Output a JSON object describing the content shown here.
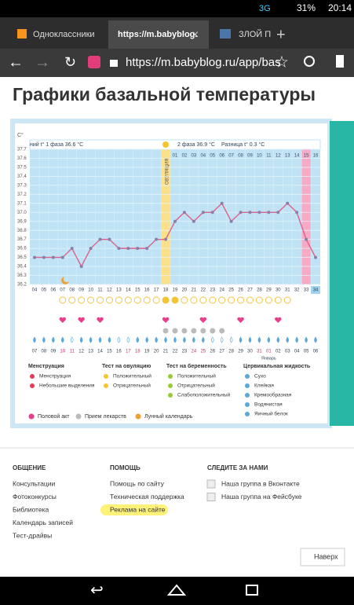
{
  "status": {
    "network": "3G",
    "battery": "31%",
    "time": "20:14"
  },
  "tabs": [
    "Одноклассники",
    "https://m.babyblog.",
    "ЗЛОЙ П"
  ],
  "url": "https://m.babyblog.ru/app/bas",
  "page_title": "Графики базальной температуры",
  "chart_data": {
    "type": "line",
    "y_unit": "C°",
    "phase1": "ний t° 1 фаза 36.6 °C",
    "phase2": "2 фаза 36.9 °C",
    "diff": "Разница t° 0.3 °C",
    "ovulation": "ОВУЛЯЦИЯ",
    "categories": [
      "04",
      "05",
      "06",
      "07",
      "08",
      "09",
      "10",
      "11",
      "12",
      "13",
      "14",
      "15",
      "16",
      "17",
      "18",
      "19",
      "20",
      "21",
      "22",
      "23",
      "24",
      "25",
      "26",
      "27",
      "28",
      "29",
      "30",
      "31",
      "32",
      "33",
      "34"
    ],
    "phase2_days": [
      "01",
      "02",
      "03",
      "04",
      "05",
      "06",
      "07",
      "08",
      "09",
      "10",
      "11",
      "12",
      "13",
      "14",
      "15",
      "16"
    ],
    "dates": [
      "07",
      "08",
      "09",
      "10",
      "11",
      "12",
      "13",
      "14",
      "15",
      "16",
      "17",
      "18",
      "19",
      "20",
      "21",
      "22",
      "23",
      "24",
      "25",
      "26",
      "27",
      "28",
      "29",
      "30",
      "31",
      "01",
      "02",
      "03",
      "04",
      "05",
      "06"
    ],
    "month": "Январь",
    "values": [
      36.5,
      36.5,
      36.5,
      36.5,
      36.6,
      36.4,
      36.6,
      36.7,
      36.7,
      36.6,
      36.6,
      36.6,
      36.6,
      36.7,
      36.7,
      36.9,
      37,
      36.9,
      37,
      37,
      37.1,
      36.9,
      37,
      37,
      37,
      37,
      37,
      37.1,
      37,
      36.7,
      36.5
    ],
    "color": "#e0608a",
    "ylim": [
      36.2,
      37.7
    ],
    "yticks": [
      36.2,
      36.3,
      36.4,
      36.5,
      36.6,
      36.7,
      36.8,
      36.9,
      {
        "value": 37,
        "label": "37.0"
      },
      37.1,
      37.2,
      37.3,
      37.4,
      37.5,
      37.6,
      37.7
    ],
    "grid": true
  },
  "legend": {
    "groups": [
      {
        "title": "Менструация",
        "items": [
          "Менструация",
          "Небольшие выделения"
        ]
      },
      {
        "title": "Тест на овуляцию",
        "items": [
          "Положительный",
          "Отрицательный"
        ]
      },
      {
        "title": "Тест на беременность",
        "items": [
          "Положительный",
          "Отрицательный",
          "Слабоположительный"
        ]
      },
      {
        "title": "Цервикальная жидкость",
        "items": [
          "Сухо",
          "Клейкая",
          "Кремообразная",
          "Водянистая",
          "Яичный белок"
        ]
      }
    ],
    "extra": [
      "Половой акт",
      "Прием лекарств",
      "Лунный календарь"
    ]
  },
  "footer": {
    "columns": [
      {
        "title": "ОБЩЕНИЕ",
        "links": [
          "Консультации",
          "Фотоконкурсы",
          "Библиотека",
          "Календарь записей",
          "Тест-драйвы"
        ]
      },
      {
        "title": "ПОМОЩЬ",
        "links": [
          "Помощь по сайту",
          "Техническая поддержка",
          "Реклама на сайте"
        ]
      },
      {
        "title": "СЛЕДИТЕ ЗА НАМИ",
        "links": [
          "Наша группа в Вконтакте",
          "Наша группа на Фейсбуке"
        ]
      }
    ],
    "top": "Наверх"
  }
}
